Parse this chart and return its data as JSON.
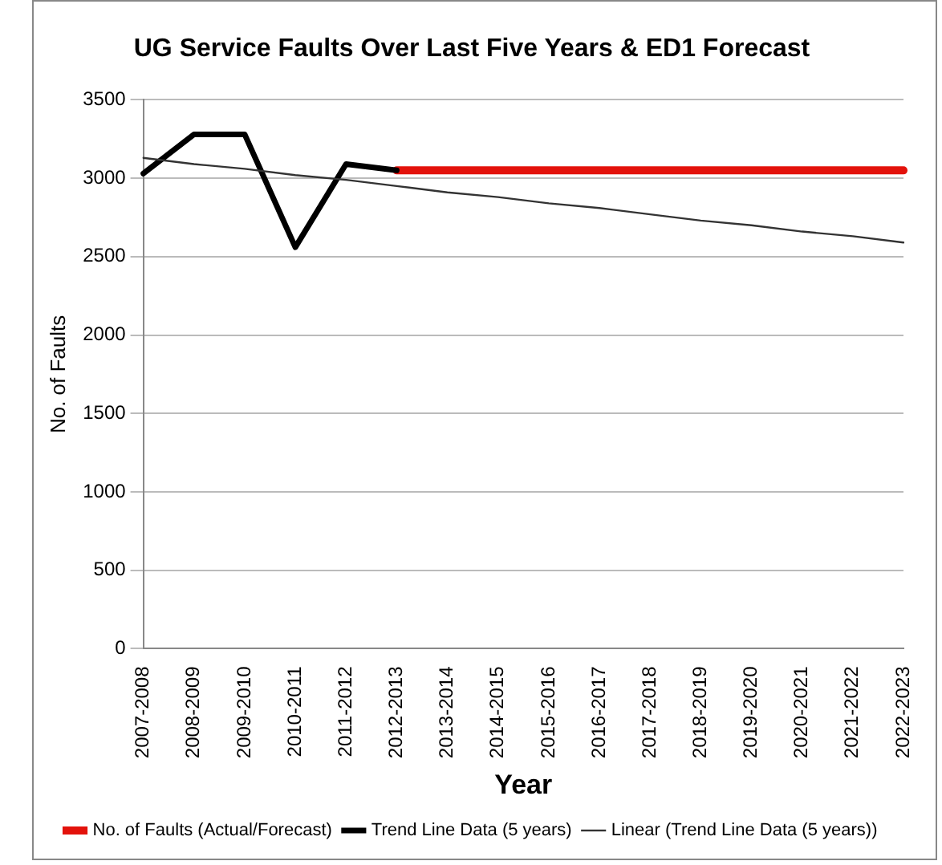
{
  "chart_data": {
    "type": "line",
    "title": "UG Service Faults Over Last Five Years & ED1 Forecast",
    "xlabel": "Year",
    "ylabel": "No. of Faults",
    "categories": [
      "2007-2008",
      "2008-2009",
      "2009-2010",
      "2010-2011",
      "2011-2012",
      "2012-2013",
      "2013-2014",
      "2014-2015",
      "2015-2016",
      "2016-2017",
      "2017-2018",
      "2018-2019",
      "2019-2020",
      "2020-2021",
      "2021-2022",
      "2022-2023"
    ],
    "series": [
      {
        "name": "No. of Faults (Actual/Forecast)",
        "color": "#e3120b",
        "values": [
          null,
          null,
          null,
          null,
          null,
          3050,
          3050,
          3050,
          3050,
          3050,
          3050,
          3050,
          3050,
          3050,
          3050,
          3050
        ]
      },
      {
        "name": "Trend Line Data (5 years)",
        "color": "#000000",
        "values": [
          3030,
          3280,
          3280,
          2560,
          3090,
          3050,
          null,
          null,
          null,
          null,
          null,
          null,
          null,
          null,
          null,
          null
        ]
      },
      {
        "name": "Linear (Trend Line Data (5 years))",
        "color": "#333333",
        "values": [
          3130,
          3090,
          3060,
          3020,
          2990,
          2950,
          2910,
          2880,
          2840,
          2810,
          2770,
          2730,
          2700,
          2660,
          2630,
          2590
        ]
      }
    ],
    "ylim": [
      0,
      3500
    ],
    "yticks": [
      0,
      500,
      1000,
      1500,
      2000,
      2500,
      3000,
      3500
    ],
    "grid": "y",
    "legend": "bottom",
    "marker": "none",
    "line_style": "solid"
  }
}
